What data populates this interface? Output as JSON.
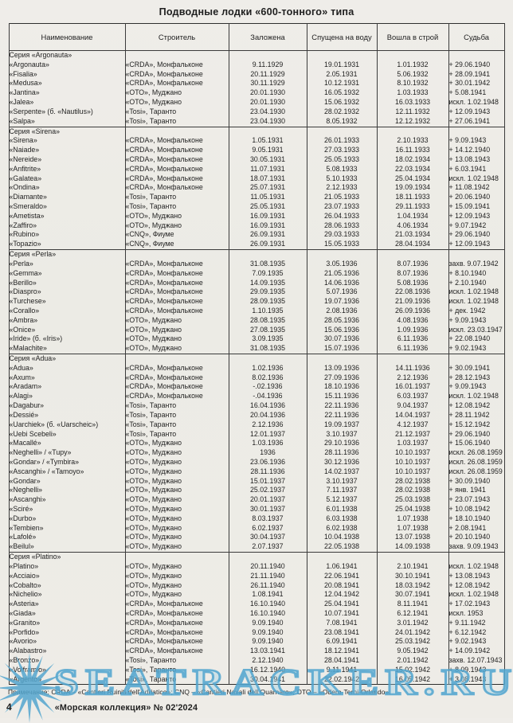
{
  "title": "Подводные лодки «600-тонного» типа",
  "table": {
    "columns": [
      "Наименование",
      "Строитель",
      "Заложена",
      "Спущена на воду",
      "Вошла в строй",
      "Судьба"
    ],
    "sections": [
      {
        "label": "Серия «Argonauta»",
        "rows": [
          [
            "«Argonauta»",
            "«CRDA», Монфальконе",
            "9.11.1929",
            "19.01.1931",
            "1.01.1932",
            "+ 29.06.1940"
          ],
          [
            "«Fisalia»",
            "«CRDA», Монфальконе",
            "20.11.1929",
            "2.05.1931",
            "5.06.1932",
            "+ 28.09.1941"
          ],
          [
            "«Medusa»",
            "«CRDA», Монфальконе",
            "30.11.1929",
            "10.12.1931",
            "8.10.1932",
            "+ 30.01.1942"
          ],
          [
            "«Jantina»",
            "«ОТО», Муджано",
            "20.01.1930",
            "16.05.1932",
            "1.03.1933",
            "+ 5.08.1941"
          ],
          [
            "«Jalea»",
            "«ОТО», Муджано",
            "20.01.1930",
            "15.06.1932",
            "16.03.1933",
            "искл. 1.02.1948"
          ],
          [
            "«Serpente» (б. «Nautilus»)",
            "«Tosi», Таранто",
            "23.04.1930",
            "28.02.1932",
            "12.11.1932",
            "+ 12.09.1943"
          ],
          [
            "«Salpa»",
            "«Tosi», Таранто",
            "23.04.1930",
            "8.05.1932",
            "12.12.1932",
            "+ 27.06.1941"
          ]
        ]
      },
      {
        "label": "Серия «Sirena»",
        "rows": [
          [
            "«Sirena»",
            "«CRDA», Монфальконе",
            "1.05.1931",
            "26.01.1933",
            "2.10.1933",
            "+ 9.09.1943"
          ],
          [
            "«Naiade»",
            "«CRDA», Монфальконе",
            "9.05.1931",
            "27.03.1933",
            "16.11.1933",
            "+ 14.12.1940"
          ],
          [
            "«Nereide»",
            "«CRDA», Монфальконе",
            "30.05.1931",
            "25.05.1933",
            "18.02.1934",
            "+ 13.08.1943"
          ],
          [
            "«Anfitrite»",
            "«CRDA», Монфальконе",
            "11.07.1931",
            "5.08.1933",
            "22.03.1934",
            "+ 6.03.1941"
          ],
          [
            "«Galatea»",
            "«CRDA», Монфальконе",
            "18.07.1931",
            "5.10.1933",
            "25.04.1934",
            "искл. 1.02.1948"
          ],
          [
            "«Ondina»",
            "«CRDA», Монфальконе",
            "25.07.1931",
            "2.12.1933",
            "19.09.1934",
            "+ 11.08.1942"
          ],
          [
            "«Diamante»",
            "«Tosi», Таранто",
            "11.05.1931",
            "21.05.1933",
            "18.11.1933",
            "+ 20.06.1940"
          ],
          [
            "«Smeraldo»",
            "«Tosi», Таранто",
            "25.05.1931",
            "23.07.1933",
            "29.11.1933",
            "+ 15.09.1941"
          ],
          [
            "«Ametista»",
            "«ОТО», Муджано",
            "16.09.1931",
            "26.04.1933",
            "1.04.1934",
            "+ 12.09.1943"
          ],
          [
            "«Zaffiro»",
            "«ОТО», Муджано",
            "16.09.1931",
            "28.06.1933",
            "4.06.1934",
            "+ 9.07.1942"
          ],
          [
            "«Rubino»",
            "«CNQ», Фиуме",
            "26.09.1931",
            "29.03.1933",
            "21.03.1934",
            "+ 29.06.1940"
          ],
          [
            "«Topazio»",
            "«CNQ», Фиуме",
            "26.09.1931",
            "15.05.1933",
            "28.04.1934",
            "+ 12.09.1943"
          ]
        ]
      },
      {
        "label": "Серия «Perla»",
        "rows": [
          [
            "«Perla»",
            "«CRDA», Монфальконе",
            "31.08.1935",
            "3.05.1936",
            "8.07.1936",
            "захв. 9.07.1942"
          ],
          [
            "«Gemma»",
            "«CRDA», Монфальконе",
            "7.09.1935",
            "21.05.1936",
            "8.07.1936",
            "+ 8.10.1940"
          ],
          [
            "«Berillo»",
            "«CRDA», Монфальконе",
            "14.09.1935",
            "14.06.1936",
            "5.08.1936",
            "+ 2.10.1940"
          ],
          [
            "«Diaspro»",
            "«CRDA», Монфальконе",
            "29.09.1935",
            "5.07.1936",
            "22.08.1936",
            "искл. 1.02.1948"
          ],
          [
            "«Turchese»",
            "«CRDA», Монфальконе",
            "28.09.1935",
            "19.07.1936",
            "21.09.1936",
            "искл. 1.02.1948"
          ],
          [
            "«Corallo»",
            "«CRDA», Монфальконе",
            "1.10.1935",
            "2.08.1936",
            "26.09.1936",
            "+ дек. 1942"
          ],
          [
            "«Ambra»",
            "«ОТО», Муджано",
            "28.08.1935",
            "28.05.1936",
            "4.08.1936",
            "+ 9.09.1943"
          ],
          [
            "«Onice»",
            "«ОТО», Муджано",
            "27.08.1935",
            "15.06.1936",
            "1.09.1936",
            "искл. 23.03.1947"
          ],
          [
            "«Iride» (б. «Iris»)",
            "«ОТО», Муджано",
            "3.09.1935",
            "30.07.1936",
            "6.11.1936",
            "+ 22.08.1940"
          ],
          [
            "«Malachite»",
            "«ОТО», Муджано",
            "31.08.1935",
            "15.07.1936",
            "6.11.1936",
            "+ 9.02.1943"
          ]
        ]
      },
      {
        "label": "Серия «Adua»",
        "rows": [
          [
            "«Adua»",
            "«CRDA», Монфальконе",
            "1.02.1936",
            "13.09.1936",
            "14.11.1936",
            "+ 30.09.1941"
          ],
          [
            "«Axum»",
            "«CRDA», Монфальконе",
            "8.02.1936",
            "27.09.1936",
            "2.12.1936",
            "+ 28.12.1943"
          ],
          [
            "«Aradam»",
            "«CRDA», Монфальконе",
            "-.02.1936",
            "18.10.1936",
            "16.01.1937",
            "+ 9.09.1943"
          ],
          [
            "«Alagi»",
            "«CRDA», Монфальконе",
            "-.04.1936",
            "15.11.1936",
            "6.03.1937",
            "искл. 1.02.1948"
          ],
          [
            "«Dagabur»",
            "«Tosi», Таранто",
            "16.04.1936",
            "22.11.1936",
            "9.04.1937",
            "+ 12.08.1942"
          ],
          [
            "«Dessié»",
            "«Tosi», Таранто",
            "20.04.1936",
            "22.11.1936",
            "14.04.1937",
            "+ 28.11.1942"
          ],
          [
            "«Uarchiek» (б. «Uarscheic»)",
            "«Tosi», Таранто",
            "2.12.1936",
            "19.09.1937",
            "4.12.1937",
            "+ 15.12.1942"
          ],
          [
            "«Uebi Scebeli»",
            "«Tosi», Таранто",
            "12.01.1937",
            "3.10.1937",
            "21.12.1937",
            "+ 29.06.1940"
          ],
          [
            "«Macallé»",
            "«ОТО», Муджано",
            "1.03.1936",
            "29.10.1936",
            "1.03.1937",
            "+ 15.06.1940"
          ],
          [
            "«Neghelli» / «Tupy»",
            "«ОТО», Муджано",
            "1936",
            "28.11.1936",
            "10.10.1937",
            "искл. 26.08.1959"
          ],
          [
            "«Gondar» / «Tymbira»",
            "«ОТО», Муджано",
            "23.06.1936",
            "30.12.1936",
            "10.10.1937",
            "искл. 26.08.1959"
          ],
          [
            "«Ascanghi» / «Tamoyo»",
            "«ОТО», Муджано",
            "28.11.1936",
            "14.02.1937",
            "10.10.1937",
            "искл. 26.08.1959"
          ],
          [
            "«Gondar»",
            "«ОТО», Муджано",
            "15.01.1937",
            "3.10.1937",
            "28.02.1938",
            "+ 30.09.1940"
          ],
          [
            "«Neghelli»",
            "«ОТО», Муджано",
            "25.02.1937",
            "7.11.1937",
            "28.02.1938",
            "+ янв. 1941"
          ],
          [
            "«Ascanghi»",
            "«ОТО», Муджано",
            "20.01.1937",
            "5.12.1937",
            "25.03.1938",
            "+ 23.07.1943"
          ],
          [
            "«Sciré»",
            "«ОТО», Муджано",
            "30.01.1937",
            "6.01.1938",
            "25.04.1938",
            "+ 10.08.1942"
          ],
          [
            "«Durbo»",
            "«ОТО», Муджано",
            "8.03.1937",
            "6.03.1938",
            "1.07.1938",
            "+ 18.10.1940"
          ],
          [
            "«Tembien»",
            "«ОТО», Муджано",
            "6.02.1937",
            "6.02.1938",
            "1.07.1938",
            "+ 2.08.1941"
          ],
          [
            "«Lafolé»",
            "«ОТО», Муджано",
            "30.04.1937",
            "10.04.1938",
            "13.07.1938",
            "+ 20.10.1940"
          ],
          [
            "«Beilul»",
            "«ОТО», Муджано",
            "2.07.1937",
            "22.05.1938",
            "14.09.1938",
            "захв. 9.09.1943"
          ]
        ]
      },
      {
        "label": "Серия «Platino»",
        "rows": [
          [
            "«Platino»",
            "«ОТО», Муджано",
            "20.11.1940",
            "1.06.1941",
            "2.10.1941",
            "искл. 1.02.1948"
          ],
          [
            "«Acciaio»",
            "«ОТО», Муджано",
            "21.11.1940",
            "22.06.1941",
            "30.10.1941",
            "+ 13.08.1943"
          ],
          [
            "«Cobalto»",
            "«ОТО», Муджано",
            "26.11.1940",
            "20.08.1941",
            "18.03.1942",
            "+ 12.08.1942"
          ],
          [
            "«Nichelio»",
            "«ОТО», Муджано",
            "1.08.1941",
            "12.04.1942",
            "30.07.1941",
            "искл. 1.02.1948"
          ],
          [
            "«Asteria»",
            "«CRDA», Монфальконе",
            "16.10.1940",
            "25.04.1941",
            "8.11.1941",
            "+ 17.02.1943"
          ],
          [
            "«Giada»",
            "«CRDA», Монфальконе",
            "16.10.1940",
            "10.07.1941",
            "6.12.1941",
            "искл. 1953"
          ],
          [
            "«Granito»",
            "«CRDA», Монфальконе",
            "9.09.1940",
            "7.08.1941",
            "3.01.1942",
            "+ 9.11.1942"
          ],
          [
            "«Porfido»",
            "«CRDA», Монфальконе",
            "9.09.1940",
            "23.08.1941",
            "24.01.1942",
            "+ 6.12.1942"
          ],
          [
            "«Avorio»",
            "«CRDA», Монфальконе",
            "9.09.1940",
            "6.09.1941",
            "25.03.1942",
            "+ 9.02.1943"
          ],
          [
            "«Alabastro»",
            "«CRDA», Монфальконе",
            "13.03.1941",
            "18.12.1941",
            "9.05.1942",
            "+ 14.09.1942"
          ],
          [
            "«Bronzo»",
            "«Tosi», Таранто",
            "2.12.1940",
            "28.04.1941",
            "2.01.1942",
            "захв. 12.07.1943"
          ],
          [
            "«Volframio»",
            "«Tosi», Таранто",
            "16.12.1940",
            "9.11.1941",
            "15.02.1942",
            "+ 8.09.1943"
          ],
          [
            "«Argento»",
            "«Tosi», Таранто",
            "30.04.1941",
            "22.02.1942",
            "16.05.1942",
            "+ 3.08.1943"
          ]
        ]
      }
    ]
  },
  "note": "Примечание: CRDA – «Cantieri Ruiniti dell'Adriatico»; CNQ – «Cantieri Navali dell Quarnaro»; ОТО – «Odero-Terni-Orlando».",
  "footer": {
    "page_number": "4",
    "edition": "«Морская коллекция» № 02'2024"
  },
  "watermark": {
    "text": "SEATRACKER.RU",
    "color": "#54a6ce"
  }
}
